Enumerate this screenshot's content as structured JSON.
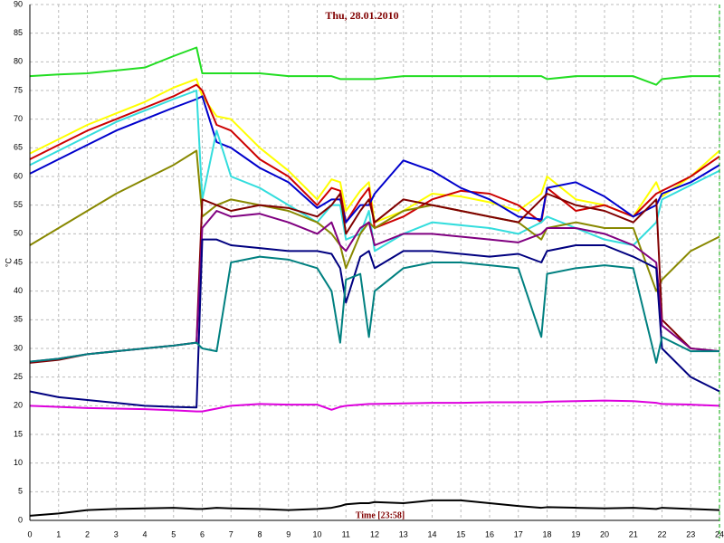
{
  "chart_data": {
    "type": "line",
    "title": "Thu, 28.01.2010",
    "xlabel": "Time [23:58]",
    "ylabel": "°C",
    "xlim": [
      0,
      24
    ],
    "ylim": [
      0,
      90
    ],
    "xticks": [
      0,
      1,
      2,
      3,
      4,
      5,
      6,
      7,
      8,
      9,
      10,
      11,
      12,
      13,
      14,
      15,
      16,
      17,
      18,
      19,
      20,
      21,
      22,
      23,
      24
    ],
    "yticks": [
      0,
      5,
      10,
      15,
      20,
      25,
      30,
      35,
      40,
      45,
      50,
      55,
      60,
      65,
      70,
      75,
      80,
      85,
      90
    ],
    "grid": true,
    "x": [
      0,
      1,
      2,
      3,
      4,
      5,
      5.8,
      6,
      6.5,
      7,
      8,
      9,
      10,
      10.5,
      10.8,
      11,
      11.5,
      11.8,
      12,
      13,
      14,
      15,
      16,
      17,
      17.8,
      18,
      19,
      20,
      21,
      21.8,
      22,
      23,
      24
    ],
    "series": [
      {
        "color": "#22dd22",
        "values": [
          77.5,
          77.8,
          78,
          78.5,
          79,
          81,
          82.5,
          78,
          78,
          78,
          78,
          77.5,
          77.5,
          77.5,
          77,
          77,
          77,
          77,
          77,
          77.5,
          77.5,
          77.5,
          77.5,
          77.5,
          77.5,
          77,
          77.5,
          77.5,
          77.5,
          76,
          77,
          77.5,
          77.5
        ]
      },
      {
        "color": "#ffff00",
        "values": [
          64,
          66.5,
          69,
          71,
          73,
          75.5,
          77,
          74,
          70.5,
          70,
          65,
          61,
          56,
          59.5,
          59,
          54,
          57.5,
          59,
          52,
          54,
          57,
          56.5,
          55.5,
          54,
          57,
          60,
          56,
          55,
          53,
          59,
          56.5,
          60,
          64.5
        ]
      },
      {
        "color": "#cc0000",
        "values": [
          63,
          65.5,
          68,
          70,
          72,
          74,
          76,
          75,
          69,
          68,
          63,
          60,
          55,
          58,
          57.5,
          52,
          56,
          58,
          51,
          53,
          56,
          57.5,
          57,
          55,
          52,
          58,
          54,
          55,
          53,
          57,
          57.5,
          60,
          63.5
        ]
      },
      {
        "color": "#0000cc",
        "values": [
          60.5,
          63,
          65.5,
          68,
          70,
          72,
          73.5,
          74,
          66,
          65,
          61.5,
          59,
          54.5,
          56,
          56,
          52,
          55,
          55,
          57,
          62.8,
          61,
          58,
          56,
          53,
          52.5,
          58,
          59,
          56.5,
          53,
          55,
          57,
          59,
          62
        ]
      },
      {
        "color": "#33dddd",
        "values": [
          62,
          64.5,
          67,
          69.5,
          71.5,
          73.5,
          75,
          56,
          68,
          60,
          58,
          55,
          52,
          55,
          55,
          49,
          50,
          54,
          47,
          50,
          52,
          51.5,
          51,
          50,
          52,
          53,
          51,
          49,
          48,
          52,
          56,
          58.5,
          61
        ]
      },
      {
        "color": "#888800",
        "values": [
          48,
          51,
          54,
          57,
          59.5,
          62,
          64.5,
          53,
          55,
          56,
          55,
          54,
          52,
          50,
          48,
          44,
          50,
          52,
          51,
          54,
          55,
          54,
          53,
          52,
          49,
          51,
          52,
          51,
          51,
          40,
          42,
          47,
          49.5
        ]
      },
      {
        "color": "#800000",
        "values": [
          27.5,
          28,
          29,
          29.5,
          30,
          30.5,
          31,
          56,
          55,
          54,
          55,
          54.5,
          53,
          55,
          57,
          50,
          54,
          56,
          52,
          56,
          55,
          54,
          53,
          52,
          56,
          57,
          55,
          54,
          52,
          56,
          35,
          30,
          29.5
        ]
      },
      {
        "color": "#800080",
        "values": [
          27.7,
          28.2,
          29,
          29.5,
          30,
          30.5,
          31,
          51,
          54,
          53,
          53.5,
          52,
          50,
          52,
          48,
          47,
          51,
          52,
          48,
          50,
          50,
          49.5,
          49,
          48.5,
          50,
          51,
          51,
          50,
          48,
          45,
          34,
          30,
          29.5
        ]
      },
      {
        "color": "#000080",
        "values": [
          22.5,
          21.5,
          21,
          20.5,
          20,
          19.8,
          19.7,
          49,
          49,
          48,
          47.5,
          47,
          47,
          46.5,
          44,
          38,
          46,
          47,
          44,
          47,
          47,
          46.5,
          46,
          46.5,
          45,
          47,
          48,
          48,
          46,
          44,
          30,
          25,
          22.5
        ]
      },
      {
        "color": "#008080",
        "values": [
          27.7,
          28.2,
          29,
          29.5,
          30,
          30.5,
          31,
          30,
          29.5,
          45,
          46,
          45.5,
          44,
          40,
          31,
          42,
          43,
          32,
          40,
          44,
          45,
          45,
          44.5,
          44,
          32,
          43,
          44,
          44.5,
          44,
          27.5,
          32,
          29.5,
          29.5
        ]
      },
      {
        "color": "#dd00dd",
        "values": [
          20,
          19.8,
          19.6,
          19.5,
          19.4,
          19.2,
          19,
          19,
          19.5,
          20,
          20.3,
          20.2,
          20.2,
          19.3,
          19.8,
          20,
          20.2,
          20.3,
          20.3,
          20.4,
          20.5,
          20.5,
          20.6,
          20.6,
          20.6,
          20.7,
          20.8,
          20.9,
          20.8,
          20.5,
          20.3,
          20.2,
          20
        ]
      },
      {
        "color": "#000000",
        "values": [
          0.8,
          1.2,
          1.8,
          2,
          2.1,
          2.2,
          2,
          2,
          2.2,
          2.1,
          2,
          1.8,
          2,
          2.2,
          2.5,
          2.8,
          3,
          3,
          3.2,
          3,
          3.5,
          3.5,
          3,
          2.5,
          2.2,
          2.3,
          2.2,
          2.1,
          2.2,
          2,
          2.2,
          2,
          1.8
        ]
      }
    ]
  }
}
